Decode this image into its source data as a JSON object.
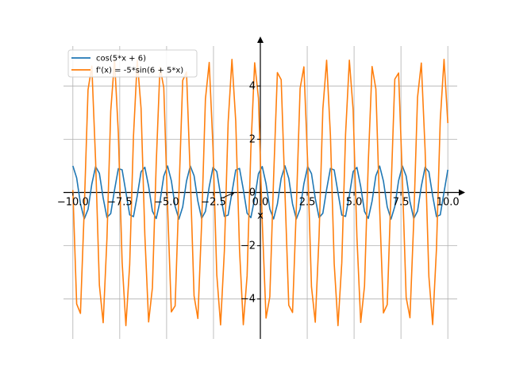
{
  "chart_data": {
    "type": "line",
    "title": "",
    "xlabel": "x",
    "ylabel": "",
    "xlim": [
      -10.5,
      10.5
    ],
    "ylim": [
      -5.5,
      5.5
    ],
    "x_ticks": [
      -10.0,
      -7.5,
      -5.0,
      -2.5,
      0.0,
      2.5,
      5.0,
      7.5,
      10.0
    ],
    "x_tick_labels": [
      "−10.0",
      "−7.5",
      "−5.0",
      "−2.5",
      "0.0",
      "2.5",
      "5.0",
      "7.5",
      "10.0"
    ],
    "y_ticks": [
      -4,
      -2,
      0,
      2,
      4
    ],
    "y_tick_labels": [
      "−4",
      "−2",
      "0",
      "2",
      "4"
    ],
    "grid": true,
    "legend_position": "top-left",
    "x_domain": [
      -10,
      10
    ],
    "sample_count": 100,
    "series": [
      {
        "name": "cos(5*x + 6)",
        "function": "cos(5*x + 6)",
        "color": "#1f77b4"
      },
      {
        "name": "f'(x) = -5*sin(6 + 5*x)",
        "function": "-5*sin(6 + 5*x)",
        "color": "#ff7f0e"
      }
    ],
    "annotations": [
      {
        "type": "arrow",
        "label": "",
        "from": [
          -2.0,
          -0.2
        ],
        "to": [
          -1.4,
          0.0
        ]
      }
    ]
  }
}
